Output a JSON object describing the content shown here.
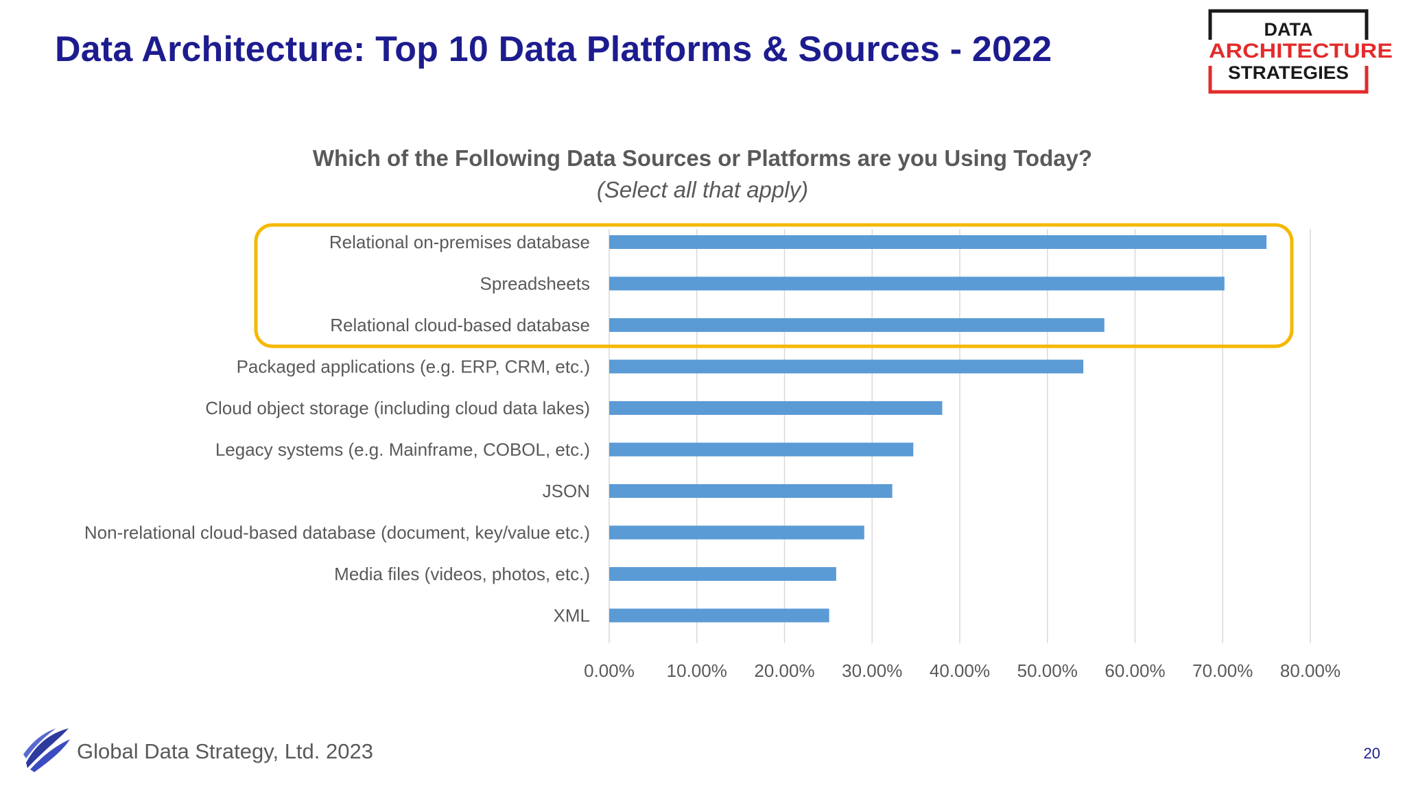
{
  "slide": {
    "title": "Data Architecture:  Top 10 Data Platforms & Sources - 2022",
    "page_number": "20"
  },
  "logo": {
    "line1": "DATA",
    "line2": "ARCHITECTURE",
    "line3": "STRATEGIES",
    "colors": {
      "frame": "#1a1a1a",
      "red": "#e32b2b",
      "text": "#1a1a1a"
    }
  },
  "footer": {
    "text": "Global Data Strategy, Ltd. 2023",
    "logo_icon": "swoosh-icon"
  },
  "colors": {
    "title": "#1d1c8f",
    "bar": "#5b9bd5",
    "highlight": "#f5b800",
    "grid": "#d9d9d9",
    "axis_text": "#595959"
  },
  "chart_data": {
    "type": "bar",
    "orientation": "horizontal",
    "title": "Which of the Following Data Sources or Platforms are you Using Today?",
    "subtitle": "(Select all that apply)",
    "categories": [
      "Relational on-premises database",
      "Spreadsheets",
      "Relational cloud-based database",
      "Packaged applications (e.g. ERP, CRM, etc.)",
      "Cloud object storage (including cloud data lakes)",
      "Legacy systems (e.g. Mainframe, COBOL, etc.)",
      "JSON",
      "Non-relational cloud-based database (document, key/value etc.)",
      "Media files (videos, photos, etc.)",
      "XML"
    ],
    "values": [
      75.0,
      70.2,
      56.5,
      54.1,
      38.0,
      34.7,
      32.3,
      29.1,
      25.9,
      25.1
    ],
    "xlim": [
      0,
      80
    ],
    "xticks": [
      "0.00%",
      "10.00%",
      "20.00%",
      "30.00%",
      "40.00%",
      "50.00%",
      "60.00%",
      "70.00%",
      "80.00%"
    ],
    "xlabel": "",
    "ylabel": "",
    "grid": true,
    "legend": "none",
    "highlighted_categories": [
      0,
      1,
      2
    ]
  }
}
